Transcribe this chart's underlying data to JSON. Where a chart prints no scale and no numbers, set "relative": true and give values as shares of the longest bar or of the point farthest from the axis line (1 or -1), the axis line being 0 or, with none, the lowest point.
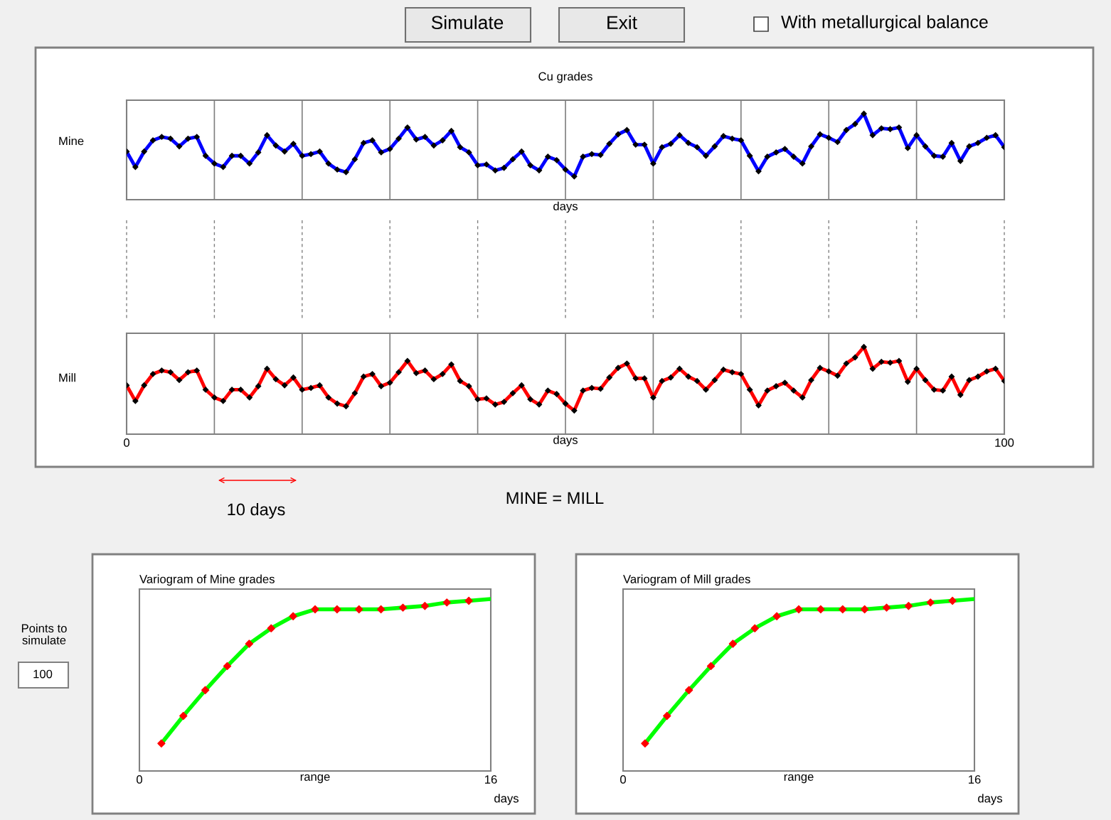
{
  "chart_data": [
    {
      "type": "line",
      "title": "Cu grades",
      "ylabel": "Mine",
      "xlabel": "days",
      "relative": true,
      "xlim": [
        0,
        100
      ],
      "xticks": [
        {
          "value": 0,
          "label": null
        },
        {
          "value": 10,
          "label": null
        },
        {
          "value": 20,
          "label": null
        },
        {
          "value": 30,
          "label": null
        },
        {
          "value": 40,
          "label": null
        },
        {
          "value": 50,
          "label": null
        },
        {
          "value": 60,
          "label": null
        },
        {
          "value": 70,
          "label": null
        },
        {
          "value": 80,
          "label": null
        },
        {
          "value": 90,
          "label": null
        },
        {
          "value": 100,
          "label": null
        }
      ],
      "grid": "x",
      "marker": "diamond",
      "tick_labels": false,
      "x": [
        0,
        1,
        2,
        3,
        4,
        5,
        6,
        7,
        8,
        9,
        10,
        11,
        12,
        13,
        14,
        15,
        16,
        17,
        18,
        19,
        20,
        21,
        22,
        23,
        24,
        25,
        26,
        27,
        28,
        29,
        30,
        31,
        32,
        33,
        34,
        35,
        36,
        37,
        38,
        39,
        40,
        41,
        42,
        43,
        44,
        45,
        46,
        47,
        48,
        49,
        50,
        51,
        52,
        53,
        54,
        55,
        56,
        57,
        58,
        59,
        60,
        61,
        62,
        63,
        64,
        65,
        66,
        67,
        68,
        69,
        70,
        71,
        72,
        73,
        74,
        75,
        76,
        77,
        78,
        79,
        80,
        81,
        82,
        83,
        84,
        85,
        86,
        87,
        88,
        89,
        90,
        91,
        92,
        93,
        94,
        95,
        96,
        97,
        98,
        99,
        100
      ],
      "series": [
        {
          "color": "#0000ff",
          "values": [
            0.56,
            0.38,
            0.56,
            0.69,
            0.73,
            0.71,
            0.62,
            0.71,
            0.73,
            0.51,
            0.42,
            0.38,
            0.51,
            0.51,
            0.42,
            0.55,
            0.75,
            0.63,
            0.56,
            0.65,
            0.51,
            0.53,
            0.56,
            0.42,
            0.35,
            0.32,
            0.47,
            0.66,
            0.69,
            0.55,
            0.59,
            0.71,
            0.84,
            0.7,
            0.73,
            0.63,
            0.69,
            0.8,
            0.61,
            0.55,
            0.4,
            0.41,
            0.34,
            0.37,
            0.47,
            0.56,
            0.4,
            0.34,
            0.5,
            0.46,
            0.35,
            0.27,
            0.5,
            0.53,
            0.52,
            0.65,
            0.76,
            0.81,
            0.64,
            0.64,
            0.42,
            0.61,
            0.65,
            0.75,
            0.66,
            0.61,
            0.51,
            0.62,
            0.74,
            0.71,
            0.69,
            0.51,
            0.33,
            0.5,
            0.55,
            0.59,
            0.5,
            0.42,
            0.62,
            0.76,
            0.72,
            0.67,
            0.81,
            0.88,
            1,
            0.75,
            0.83,
            0.82,
            0.84,
            0.6,
            0.75,
            0.62,
            0.51,
            0.5,
            0.66,
            0.45,
            0.62,
            0.66,
            0.72,
            0.75,
            0.61
          ]
        }
      ]
    },
    {
      "type": "line",
      "ylabel": "Mill",
      "xlabel": "days",
      "relative": true,
      "xlim": [
        0,
        100
      ],
      "xticks": [
        0,
        {
          "value": 10,
          "label": null
        },
        {
          "value": 20,
          "label": null
        },
        {
          "value": 30,
          "label": null
        },
        {
          "value": 40,
          "label": null
        },
        {
          "value": 50,
          "label": null
        },
        {
          "value": 60,
          "label": null
        },
        {
          "value": 70,
          "label": null
        },
        {
          "value": 80,
          "label": null
        },
        {
          "value": 90,
          "label": null
        },
        100
      ],
      "grid": "x",
      "marker": "diamond",
      "tick_labels": "x",
      "annotations": [
        "10 days",
        "MINE = MILL"
      ],
      "x": [
        0,
        1,
        2,
        3,
        4,
        5,
        6,
        7,
        8,
        9,
        10,
        11,
        12,
        13,
        14,
        15,
        16,
        17,
        18,
        19,
        20,
        21,
        22,
        23,
        24,
        25,
        26,
        27,
        28,
        29,
        30,
        31,
        32,
        33,
        34,
        35,
        36,
        37,
        38,
        39,
        40,
        41,
        42,
        43,
        44,
        45,
        46,
        47,
        48,
        49,
        50,
        51,
        52,
        53,
        54,
        55,
        56,
        57,
        58,
        59,
        60,
        61,
        62,
        63,
        64,
        65,
        66,
        67,
        68,
        69,
        70,
        71,
        72,
        73,
        74,
        75,
        76,
        77,
        78,
        79,
        80,
        81,
        82,
        83,
        84,
        85,
        86,
        87,
        88,
        89,
        90,
        91,
        92,
        93,
        94,
        95,
        96,
        97,
        98,
        99,
        100
      ],
      "series": [
        {
          "color": "#ff0000",
          "values": [
            0.56,
            0.38,
            0.56,
            0.69,
            0.73,
            0.71,
            0.62,
            0.71,
            0.73,
            0.51,
            0.42,
            0.38,
            0.51,
            0.51,
            0.42,
            0.55,
            0.75,
            0.63,
            0.56,
            0.65,
            0.51,
            0.53,
            0.56,
            0.42,
            0.35,
            0.32,
            0.47,
            0.66,
            0.69,
            0.55,
            0.59,
            0.71,
            0.84,
            0.7,
            0.73,
            0.63,
            0.69,
            0.8,
            0.61,
            0.55,
            0.4,
            0.41,
            0.34,
            0.37,
            0.47,
            0.56,
            0.4,
            0.34,
            0.5,
            0.46,
            0.35,
            0.27,
            0.5,
            0.53,
            0.52,
            0.65,
            0.76,
            0.81,
            0.64,
            0.64,
            0.42,
            0.61,
            0.65,
            0.75,
            0.66,
            0.61,
            0.51,
            0.62,
            0.74,
            0.71,
            0.69,
            0.51,
            0.33,
            0.5,
            0.55,
            0.59,
            0.5,
            0.42,
            0.62,
            0.76,
            0.72,
            0.67,
            0.81,
            0.88,
            1,
            0.75,
            0.83,
            0.82,
            0.84,
            0.6,
            0.75,
            0.62,
            0.51,
            0.5,
            0.66,
            0.45,
            0.62,
            0.66,
            0.72,
            0.75,
            0.61
          ]
        }
      ]
    },
    {
      "type": "line",
      "title": "Variogram of Mine grades",
      "xlabel": "range",
      "relative": true,
      "xlim": [
        0,
        16
      ],
      "xticks": [
        0,
        16
      ],
      "tick_labels": "x",
      "annotations": [
        "days"
      ],
      "series": [
        {
          "type": "line",
          "color": "#00ff00",
          "x": [
            1,
            2,
            3,
            4,
            5,
            6,
            7,
            8,
            9,
            10,
            11,
            12,
            13,
            14,
            15,
            16
          ],
          "values": [
            0.16,
            0.32,
            0.47,
            0.61,
            0.74,
            0.83,
            0.9,
            0.94,
            0.94,
            0.94,
            0.94,
            0.95,
            0.96,
            0.98,
            0.99,
            1
          ]
        },
        {
          "type": "scatter",
          "color": "#ff0000",
          "marker": "diamond",
          "x": [
            1,
            2,
            3,
            4,
            5,
            6,
            7,
            8,
            9,
            10,
            11,
            12,
            13,
            14,
            15
          ],
          "values": [
            0.16,
            0.32,
            0.47,
            0.61,
            0.74,
            0.83,
            0.9,
            0.94,
            0.94,
            0.94,
            0.94,
            0.95,
            0.96,
            0.98,
            0.99
          ]
        }
      ]
    },
    {
      "type": "line",
      "title": "Variogram of Mill grades",
      "xlabel": "range",
      "relative": true,
      "xlim": [
        0,
        16
      ],
      "xticks": [
        0,
        16
      ],
      "tick_labels": "x",
      "annotations": [
        "days"
      ],
      "series": [
        {
          "type": "line",
          "color": "#00ff00",
          "x": [
            1,
            2,
            3,
            4,
            5,
            6,
            7,
            8,
            9,
            10,
            11,
            12,
            13,
            14,
            15,
            16
          ],
          "values": [
            0.16,
            0.32,
            0.47,
            0.61,
            0.74,
            0.83,
            0.9,
            0.94,
            0.94,
            0.94,
            0.94,
            0.95,
            0.96,
            0.98,
            0.99,
            1
          ]
        },
        {
          "type": "scatter",
          "color": "#ff0000",
          "marker": "diamond",
          "x": [
            1,
            2,
            3,
            4,
            5,
            6,
            7,
            8,
            9,
            10,
            11,
            12,
            13,
            14,
            15
          ],
          "values": [
            0.16,
            0.32,
            0.47,
            0.61,
            0.74,
            0.83,
            0.9,
            0.94,
            0.94,
            0.94,
            0.94,
            0.95,
            0.96,
            0.98,
            0.99
          ]
        }
      ]
    },
    {
      "type": "other",
      "annotations": [
        "Simulate",
        "Exit",
        "With metallurgical balance",
        "Points to simulate",
        "100"
      ]
    }
  ]
}
